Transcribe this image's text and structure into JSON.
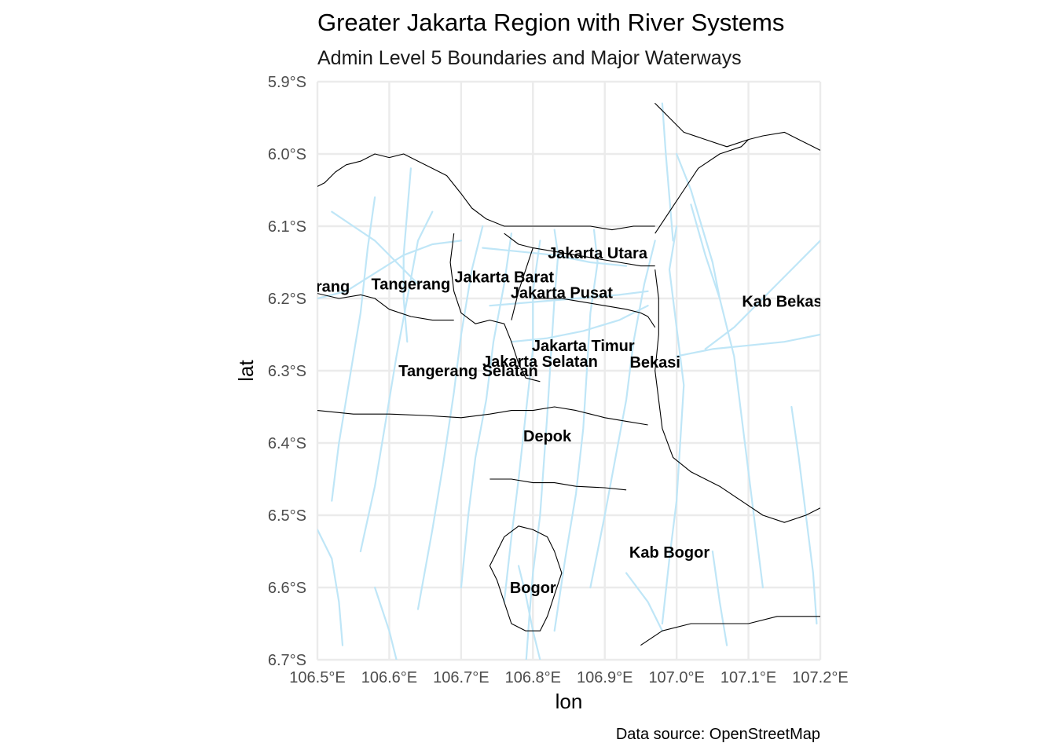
{
  "title": "Greater Jakarta Region with River Systems",
  "subtitle": "Admin Level 5 Boundaries and Major Waterways",
  "caption": "Data source: OpenStreetMap",
  "axes": {
    "x_title": "lon",
    "y_title": "lat",
    "x_range": [
      106.5,
      107.2
    ],
    "y_range": [
      -6.7,
      -5.9
    ],
    "x_ticks": [
      {
        "value": 106.5,
        "label": "106.5°E"
      },
      {
        "value": 106.6,
        "label": "106.6°E"
      },
      {
        "value": 106.7,
        "label": "106.7°E"
      },
      {
        "value": 106.8,
        "label": "106.8°E"
      },
      {
        "value": 106.9,
        "label": "106.9°E"
      },
      {
        "value": 107.0,
        "label": "107.0°E"
      },
      {
        "value": 107.1,
        "label": "107.1°E"
      },
      {
        "value": 107.2,
        "label": "107.2°E"
      }
    ],
    "y_ticks": [
      {
        "value": -5.9,
        "label": "5.9°S"
      },
      {
        "value": -6.0,
        "label": "6.0°S"
      },
      {
        "value": -6.1,
        "label": "6.1°S"
      },
      {
        "value": -6.2,
        "label": "6.2°S"
      },
      {
        "value": -6.3,
        "label": "6.3°S"
      },
      {
        "value": -6.4,
        "label": "6.4°S"
      },
      {
        "value": -6.5,
        "label": "6.5°S"
      },
      {
        "value": -6.6,
        "label": "6.6°S"
      },
      {
        "value": -6.7,
        "label": "6.7°S"
      }
    ]
  },
  "colors": {
    "river": "#bfe6f7",
    "boundary": "#000000",
    "grid": "#ebebeb",
    "background": "#ffffff"
  },
  "regions": [
    {
      "name": "Tangerang",
      "lon": 106.49,
      "lat": -6.183
    },
    {
      "name": "Tangerang",
      "lon": 106.63,
      "lat": -6.18
    },
    {
      "name": "Jakarta Barat",
      "lon": 106.76,
      "lat": -6.17
    },
    {
      "name": "Jakarta Pusat",
      "lon": 106.84,
      "lat": -6.192
    },
    {
      "name": "Jakarta Utara",
      "lon": 106.89,
      "lat": -6.137
    },
    {
      "name": "Kab Bekasi",
      "lon": 107.15,
      "lat": -6.204
    },
    {
      "name": "Jakarta Timur",
      "lon": 106.87,
      "lat": -6.265
    },
    {
      "name": "Jakarta Selatan",
      "lon": 106.81,
      "lat": -6.287
    },
    {
      "name": "Bekasi",
      "lon": 106.97,
      "lat": -6.288
    },
    {
      "name": "Tangerang Selatan",
      "lon": 106.71,
      "lat": -6.3
    },
    {
      "name": "Depok",
      "lon": 106.82,
      "lat": -6.39
    },
    {
      "name": "Kab Bogor",
      "lon": 106.99,
      "lat": -6.551
    },
    {
      "name": "Bogor",
      "lon": 106.8,
      "lat": -6.6
    }
  ],
  "rivers": [
    [
      [
        106.79,
        -6.71
      ],
      [
        106.795,
        -6.64
      ],
      [
        106.8,
        -6.58
      ],
      [
        106.81,
        -6.5
      ],
      [
        106.815,
        -6.43
      ],
      [
        106.82,
        -6.36
      ],
      [
        106.825,
        -6.28
      ],
      [
        106.83,
        -6.2
      ],
      [
        106.835,
        -6.14
      ],
      [
        106.83,
        -6.105
      ]
    ],
    [
      [
        106.83,
        -6.66
      ],
      [
        106.845,
        -6.56
      ],
      [
        106.86,
        -6.47
      ],
      [
        106.87,
        -6.38
      ],
      [
        106.875,
        -6.3
      ],
      [
        106.88,
        -6.22
      ],
      [
        106.89,
        -6.15
      ],
      [
        106.885,
        -6.105
      ]
    ],
    [
      [
        106.76,
        -6.62
      ],
      [
        106.77,
        -6.53
      ],
      [
        106.78,
        -6.45
      ],
      [
        106.79,
        -6.36
      ],
      [
        106.8,
        -6.27
      ],
      [
        106.8,
        -6.19
      ],
      [
        106.81,
        -6.12
      ]
    ],
    [
      [
        106.88,
        -6.6
      ],
      [
        106.9,
        -6.5
      ],
      [
        106.915,
        -6.42
      ],
      [
        106.93,
        -6.34
      ],
      [
        106.94,
        -6.26
      ],
      [
        106.955,
        -6.18
      ],
      [
        106.97,
        -6.12
      ]
    ],
    [
      [
        106.7,
        -6.6
      ],
      [
        106.71,
        -6.5
      ],
      [
        106.72,
        -6.42
      ],
      [
        106.735,
        -6.34
      ],
      [
        106.745,
        -6.26
      ],
      [
        106.76,
        -6.18
      ],
      [
        106.77,
        -6.11
      ]
    ],
    [
      [
        106.64,
        -6.63
      ],
      [
        106.66,
        -6.52
      ],
      [
        106.675,
        -6.43
      ],
      [
        106.69,
        -6.33
      ],
      [
        106.7,
        -6.25
      ],
      [
        106.715,
        -6.16
      ],
      [
        106.73,
        -6.1
      ]
    ],
    [
      [
        106.56,
        -6.55
      ],
      [
        106.58,
        -6.46
      ],
      [
        106.595,
        -6.37
      ],
      [
        106.61,
        -6.28
      ],
      [
        106.625,
        -6.2
      ],
      [
        106.64,
        -6.12
      ],
      [
        106.66,
        -6.08
      ]
    ],
    [
      [
        106.52,
        -6.48
      ],
      [
        106.53,
        -6.4
      ],
      [
        106.545,
        -6.31
      ],
      [
        106.56,
        -6.22
      ],
      [
        106.57,
        -6.13
      ],
      [
        106.58,
        -6.06
      ]
    ],
    [
      [
        106.5,
        -6.2
      ],
      [
        106.54,
        -6.19
      ],
      [
        106.58,
        -6.165
      ],
      [
        106.62,
        -6.14
      ],
      [
        106.66,
        -6.125
      ],
      [
        106.7,
        -6.12
      ]
    ],
    [
      [
        106.52,
        -6.08
      ],
      [
        106.55,
        -6.1
      ],
      [
        106.58,
        -6.12
      ],
      [
        106.61,
        -6.15
      ],
      [
        106.64,
        -6.18
      ]
    ],
    [
      [
        106.63,
        -6.02
      ],
      [
        106.625,
        -6.08
      ],
      [
        106.62,
        -6.14
      ],
      [
        106.62,
        -6.2
      ],
      [
        106.625,
        -6.26
      ]
    ],
    [
      [
        106.73,
        -6.13
      ],
      [
        106.78,
        -6.135
      ],
      [
        106.83,
        -6.14
      ],
      [
        106.88,
        -6.15
      ],
      [
        106.93,
        -6.155
      ]
    ],
    [
      [
        106.74,
        -6.21
      ],
      [
        106.8,
        -6.205
      ],
      [
        106.86,
        -6.2
      ],
      [
        106.92,
        -6.195
      ],
      [
        106.96,
        -6.19
      ]
    ],
    [
      [
        106.77,
        -6.26
      ],
      [
        106.82,
        -6.255
      ],
      [
        106.87,
        -6.245
      ],
      [
        106.92,
        -6.23
      ],
      [
        106.96,
        -6.21
      ]
    ],
    [
      [
        106.98,
        -6.65
      ],
      [
        106.99,
        -6.56
      ],
      [
        107.0,
        -6.48
      ],
      [
        107.005,
        -6.4
      ],
      [
        107.01,
        -6.32
      ],
      [
        107.0,
        -6.24
      ],
      [
        106.99,
        -6.16
      ],
      [
        107.0,
        -6.1
      ]
    ],
    [
      [
        107.12,
        -6.6
      ],
      [
        107.11,
        -6.52
      ],
      [
        107.1,
        -6.44
      ],
      [
        107.09,
        -6.36
      ],
      [
        107.08,
        -6.28
      ],
      [
        107.06,
        -6.2
      ],
      [
        107.04,
        -6.14
      ],
      [
        107.02,
        -6.07
      ]
    ],
    [
      [
        107.2,
        -6.12
      ],
      [
        107.17,
        -6.15
      ],
      [
        107.14,
        -6.18
      ],
      [
        107.11,
        -6.21
      ],
      [
        107.08,
        -6.24
      ],
      [
        107.04,
        -6.27
      ]
    ],
    [
      [
        107.0,
        -6.28
      ],
      [
        107.05,
        -6.27
      ],
      [
        107.1,
        -6.265
      ],
      [
        107.15,
        -6.26
      ],
      [
        107.2,
        -6.25
      ]
    ],
    [
      [
        107.0,
        -6.0
      ],
      [
        107.02,
        -6.05
      ],
      [
        107.035,
        -6.1
      ],
      [
        107.05,
        -6.15
      ],
      [
        107.06,
        -6.2
      ]
    ],
    [
      [
        106.98,
        -5.93
      ],
      [
        106.985,
        -6.0
      ],
      [
        106.99,
        -6.06
      ],
      [
        106.995,
        -6.12
      ]
    ],
    [
      [
        107.16,
        -6.35
      ],
      [
        107.17,
        -6.42
      ],
      [
        107.18,
        -6.5
      ],
      [
        107.19,
        -6.58
      ],
      [
        107.195,
        -6.65
      ]
    ],
    [
      [
        106.5,
        -6.52
      ],
      [
        106.52,
        -6.56
      ],
      [
        106.53,
        -6.62
      ],
      [
        106.535,
        -6.68
      ]
    ],
    [
      [
        106.58,
        -6.6
      ],
      [
        106.6,
        -6.66
      ],
      [
        106.61,
        -6.7
      ]
    ],
    [
      [
        106.93,
        -6.58
      ],
      [
        106.96,
        -6.62
      ],
      [
        106.98,
        -6.66
      ]
    ],
    [
      [
        107.05,
        -6.55
      ],
      [
        107.06,
        -6.62
      ],
      [
        107.07,
        -6.68
      ]
    ],
    [
      [
        106.78,
        -6.57
      ],
      [
        106.79,
        -6.61
      ],
      [
        106.8,
        -6.66
      ],
      [
        106.81,
        -6.7
      ]
    ]
  ],
  "boundaries": [
    [
      [
        106.5,
        -6.045
      ],
      [
        106.51,
        -6.04
      ],
      [
        106.525,
        -6.025
      ],
      [
        106.54,
        -6.015
      ],
      [
        106.56,
        -6.01
      ],
      [
        106.58,
        -6.0
      ],
      [
        106.6,
        -6.005
      ],
      [
        106.62,
        -6.0
      ],
      [
        106.64,
        -6.01
      ],
      [
        106.66,
        -6.02
      ],
      [
        106.68,
        -6.03
      ],
      [
        106.7,
        -6.055
      ],
      [
        106.715,
        -6.075
      ],
      [
        106.735,
        -6.09
      ],
      [
        106.76,
        -6.1
      ],
      [
        106.79,
        -6.1
      ],
      [
        106.82,
        -6.1
      ],
      [
        106.85,
        -6.1
      ],
      [
        106.88,
        -6.1
      ],
      [
        106.91,
        -6.105
      ],
      [
        106.94,
        -6.1
      ],
      [
        106.97,
        -6.1
      ]
    ],
    [
      [
        106.5,
        -6.193
      ],
      [
        106.53,
        -6.2
      ],
      [
        106.56,
        -6.195
      ],
      [
        106.58,
        -6.2
      ],
      [
        106.6,
        -6.215
      ],
      [
        106.63,
        -6.225
      ],
      [
        106.66,
        -6.23
      ],
      [
        106.69,
        -6.23
      ]
    ],
    [
      [
        106.69,
        -6.11
      ],
      [
        106.685,
        -6.15
      ],
      [
        106.69,
        -6.19
      ],
      [
        106.7,
        -6.22
      ],
      [
        106.72,
        -6.235
      ],
      [
        106.74,
        -6.23
      ],
      [
        106.76,
        -6.235
      ],
      [
        106.77,
        -6.26
      ],
      [
        106.78,
        -6.29
      ],
      [
        106.79,
        -6.31
      ],
      [
        106.81,
        -6.315
      ]
    ],
    [
      [
        106.76,
        -6.11
      ],
      [
        106.78,
        -6.125
      ],
      [
        106.8,
        -6.13
      ],
      [
        106.83,
        -6.135
      ],
      [
        106.86,
        -6.14
      ],
      [
        106.89,
        -6.145
      ],
      [
        106.92,
        -6.15
      ],
      [
        106.95,
        -6.155
      ],
      [
        106.97,
        -6.155
      ]
    ],
    [
      [
        106.8,
        -6.13
      ],
      [
        106.79,
        -6.16
      ],
      [
        106.78,
        -6.19
      ],
      [
        106.77,
        -6.23
      ]
    ],
    [
      [
        106.8,
        -6.2
      ],
      [
        106.84,
        -6.2
      ],
      [
        106.87,
        -6.205
      ],
      [
        106.9,
        -6.21
      ],
      [
        106.93,
        -6.215
      ],
      [
        106.95,
        -6.22
      ],
      [
        106.96,
        -6.225
      ],
      [
        106.97,
        -6.24
      ]
    ],
    [
      [
        106.97,
        -6.16
      ],
      [
        106.975,
        -6.2
      ],
      [
        106.975,
        -6.25
      ],
      [
        106.97,
        -6.3
      ],
      [
        106.975,
        -6.34
      ],
      [
        106.98,
        -6.38
      ],
      [
        106.995,
        -6.42
      ],
      [
        107.02,
        -6.44
      ],
      [
        107.06,
        -6.46
      ],
      [
        107.09,
        -6.48
      ],
      [
        107.12,
        -6.5
      ],
      [
        107.15,
        -6.51
      ],
      [
        107.18,
        -6.5
      ],
      [
        107.2,
        -6.49
      ]
    ],
    [
      [
        106.5,
        -6.355
      ],
      [
        106.55,
        -6.36
      ],
      [
        106.6,
        -6.36
      ],
      [
        106.65,
        -6.362
      ],
      [
        106.7,
        -6.365
      ],
      [
        106.74,
        -6.36
      ],
      [
        106.77,
        -6.355
      ],
      [
        106.8,
        -6.355
      ],
      [
        106.83,
        -6.35
      ],
      [
        106.86,
        -6.355
      ],
      [
        106.88,
        -6.36
      ],
      [
        106.9,
        -6.365
      ],
      [
        106.93,
        -6.37
      ],
      [
        106.96,
        -6.375
      ]
    ],
    [
      [
        106.74,
        -6.45
      ],
      [
        106.77,
        -6.45
      ],
      [
        106.8,
        -6.455
      ],
      [
        106.83,
        -6.455
      ],
      [
        106.86,
        -6.46
      ],
      [
        106.9,
        -6.462
      ],
      [
        106.93,
        -6.465
      ]
    ],
    [
      [
        106.76,
        -6.53
      ],
      [
        106.78,
        -6.515
      ],
      [
        106.8,
        -6.52
      ],
      [
        106.82,
        -6.53
      ],
      [
        106.83,
        -6.55
      ],
      [
        106.84,
        -6.58
      ],
      [
        106.83,
        -6.61
      ],
      [
        106.82,
        -6.64
      ],
      [
        106.81,
        -6.66
      ],
      [
        106.79,
        -6.66
      ],
      [
        106.77,
        -6.65
      ],
      [
        106.76,
        -6.62
      ],
      [
        106.75,
        -6.59
      ],
      [
        106.74,
        -6.57
      ],
      [
        106.75,
        -6.55
      ],
      [
        106.76,
        -6.53
      ]
    ],
    [
      [
        106.95,
        -6.68
      ],
      [
        106.98,
        -6.66
      ],
      [
        107.02,
        -6.65
      ],
      [
        107.06,
        -6.65
      ],
      [
        107.1,
        -6.65
      ],
      [
        107.14,
        -6.64
      ],
      [
        107.18,
        -6.64
      ],
      [
        107.2,
        -6.64
      ]
    ],
    [
      [
        106.97,
        -6.11
      ],
      [
        106.99,
        -6.08
      ],
      [
        107.01,
        -6.05
      ],
      [
        107.03,
        -6.02
      ],
      [
        107.06,
        -6.0
      ],
      [
        107.09,
        -5.99
      ],
      [
        107.1,
        -5.98
      ]
    ],
    [
      [
        107.1,
        -5.98
      ],
      [
        107.12,
        -5.975
      ],
      [
        107.15,
        -5.97
      ],
      [
        107.17,
        -5.98
      ],
      [
        107.19,
        -5.99
      ],
      [
        107.2,
        -5.995
      ]
    ],
    [
      [
        106.99,
        -5.95
      ],
      [
        106.98,
        -5.94
      ],
      [
        106.97,
        -5.93
      ],
      [
        106.975,
        -5.935
      ],
      [
        106.99,
        -5.95
      ],
      [
        107.01,
        -5.97
      ],
      [
        107.04,
        -5.98
      ],
      [
        107.07,
        -5.99
      ],
      [
        107.1,
        -5.98
      ]
    ]
  ]
}
